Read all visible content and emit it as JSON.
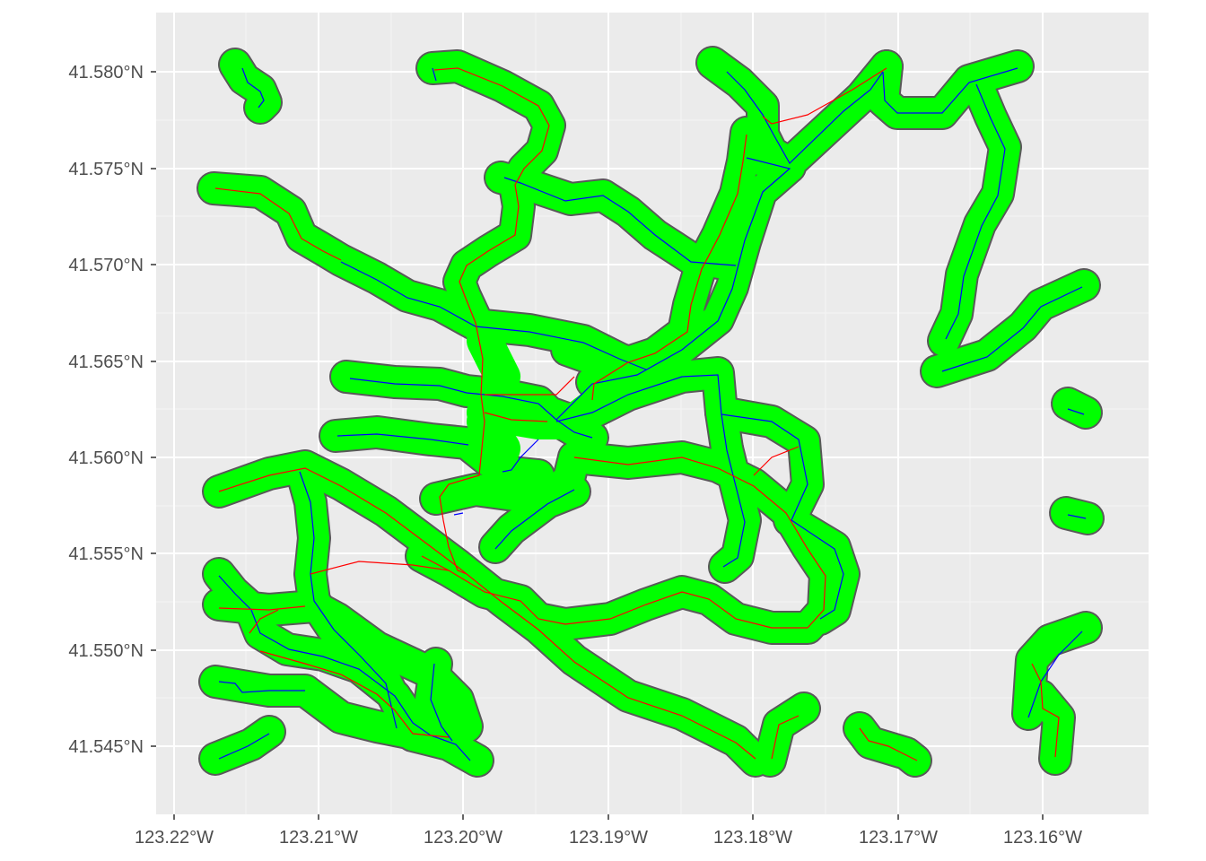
{
  "map": {
    "y_ticks": [
      "41.580°N",
      "41.575°N",
      "41.570°N",
      "41.565°N",
      "41.560°N",
      "41.555°N",
      "41.550°N",
      "41.545°N"
    ],
    "x_ticks": [
      "123.22°W",
      "123.21°W",
      "123.20°W",
      "123.19°W",
      "123.18°W",
      "123.17°W",
      "123.16°W"
    ],
    "colors": {
      "panel_background": "#ebebeb",
      "grid": "#ffffff",
      "buffer_fill": "#00ff00",
      "buffer_outline": "#595959",
      "stream_line_blue": "#0000ff",
      "road_line_red": "#ff0000"
    },
    "layers": [
      "green buffer polygons",
      "blue stream lines",
      "red road lines"
    ]
  }
}
